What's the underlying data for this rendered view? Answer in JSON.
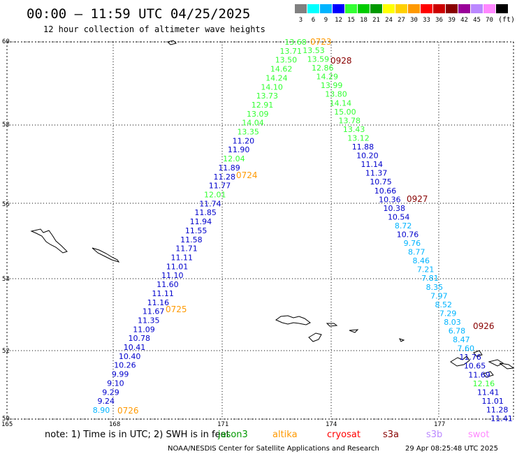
{
  "header": {
    "title": "00:00 — 11:59 UTC 04/25/2025",
    "subtitle": "12 hour collection of altimeter wave heights"
  },
  "legend": {
    "unit": "(ft)",
    "bins": [
      {
        "label": "3",
        "color": "#808080"
      },
      {
        "label": "6",
        "color": "#00ffff"
      },
      {
        "label": "9",
        "color": "#00b4ff"
      },
      {
        "label": "12",
        "color": "#0000ff"
      },
      {
        "label": "15",
        "color": "#33ff33"
      },
      {
        "label": "18",
        "color": "#00cc00"
      },
      {
        "label": "21",
        "color": "#009900"
      },
      {
        "label": "24",
        "color": "#ffff00"
      },
      {
        "label": "27",
        "color": "#ffd000"
      },
      {
        "label": "30",
        "color": "#ff9900"
      },
      {
        "label": "33",
        "color": "#ff0000"
      },
      {
        "label": "36",
        "color": "#cc0000"
      },
      {
        "label": "39",
        "color": "#880000"
      },
      {
        "label": "42",
        "color": "#990099"
      },
      {
        "label": "45",
        "color": "#bb88ff"
      },
      {
        "label": "70",
        "color": "#ff88ff"
      },
      {
        "label": "",
        "color": "#000000"
      }
    ]
  },
  "axes": {
    "lat_labels": [
      "60",
      "58",
      "56",
      "54",
      "52",
      "50"
    ],
    "lon_labels": [
      "165",
      "168",
      "171",
      "174",
      "177"
    ]
  },
  "passes": [
    {
      "label": "0723",
      "color": "#ff9900"
    },
    {
      "label": "0928",
      "color": "#880000"
    },
    {
      "label": "0724",
      "color": "#ff9900"
    },
    {
      "label": "0927",
      "color": "#880000"
    },
    {
      "label": "0725",
      "color": "#ff9900"
    },
    {
      "label": "0926",
      "color": "#880000"
    },
    {
      "label": "0726",
      "color": "#ff9900"
    }
  ],
  "track_a": {
    "values": [
      "13.68",
      "13.71",
      "13.50",
      "14.62",
      "14.24",
      "14.10",
      "13.73",
      "12.91",
      "13.09",
      "14.04",
      "13.35",
      "11.20",
      "11.90",
      "12.04",
      "11.89",
      "11.28",
      "11.77",
      "12.01",
      "11.74",
      "11.85",
      "11.94",
      "11.55",
      "11.58",
      "11.71",
      "11.11",
      "11.01",
      "11.10",
      "11.60",
      "11.11",
      "11.16",
      "11.67",
      "11.35",
      "11.09",
      "10.78",
      "10.41",
      "10.40",
      "10.26",
      "9.99",
      "9.10",
      "9.29",
      "9.24",
      "8.90"
    ],
    "colors": [
      "#33ff33",
      "#33ff33",
      "#33ff33",
      "#33ff33",
      "#33ff33",
      "#33ff33",
      "#33ff33",
      "#33ff33",
      "#33ff33",
      "#33ff33",
      "#33ff33",
      "#0000cc",
      "#0000cc",
      "#33ff33",
      "#0000cc",
      "#0000cc",
      "#0000cc",
      "#33ff33",
      "#0000cc",
      "#0000cc",
      "#0000cc",
      "#0000cc",
      "#0000cc",
      "#0000cc",
      "#0000cc",
      "#0000cc",
      "#0000cc",
      "#0000cc",
      "#0000cc",
      "#0000cc",
      "#0000cc",
      "#0000cc",
      "#0000cc",
      "#0000cc",
      "#0000cc",
      "#0000cc",
      "#0000cc",
      "#0000cc",
      "#0000cc",
      "#0000cc",
      "#0000cc",
      "#00b4ff"
    ]
  },
  "track_b": {
    "values": [
      "13.53",
      "13.59",
      "12.86",
      "14.29",
      "13.99",
      "13.80",
      "14.14",
      "15.00",
      "13.78",
      "13.43",
      "13.12",
      "11.88",
      "10.20",
      "11.14",
      "11.37",
      "10.75",
      "10.66",
      "10.36",
      "10.38",
      "10.54",
      "8.72",
      "10.76",
      "9.76",
      "8.77",
      "8.46",
      "7.21",
      "7.81",
      "8.35",
      "7.97",
      "8.52",
      "7.29",
      "8.03",
      "6.78",
      "8.47",
      "7.60",
      "11.76",
      "10.65",
      "11.69",
      "12.16",
      "11.41",
      "11.01",
      "11.28",
      "11.41"
    ],
    "colors": [
      "#33ff33",
      "#33ff33",
      "#33ff33",
      "#33ff33",
      "#33ff33",
      "#33ff33",
      "#33ff33",
      "#33ff33",
      "#33ff33",
      "#33ff33",
      "#33ff33",
      "#0000cc",
      "#0000cc",
      "#0000cc",
      "#0000cc",
      "#0000cc",
      "#0000cc",
      "#0000cc",
      "#0000cc",
      "#0000cc",
      "#00b4ff",
      "#0000cc",
      "#00b4ff",
      "#00b4ff",
      "#00b4ff",
      "#00b4ff",
      "#00b4ff",
      "#00b4ff",
      "#00b4ff",
      "#00b4ff",
      "#00b4ff",
      "#00b4ff",
      "#00b4ff",
      "#00b4ff",
      "#00b4ff",
      "#0000cc",
      "#0000cc",
      "#0000cc",
      "#33ff33",
      "#0000cc",
      "#0000cc",
      "#0000cc",
      "#0000cc"
    ]
  },
  "footer": {
    "note": "note:  1) Time is in UTC; 2) SWH is in feet",
    "satellites": [
      {
        "name": "jason3",
        "color": "#009900"
      },
      {
        "name": "altika",
        "color": "#ff9900"
      },
      {
        "name": "cryosat",
        "color": "#ff0000"
      },
      {
        "name": "s3a",
        "color": "#880000"
      },
      {
        "name": "s3b",
        "color": "#bb88ff"
      },
      {
        "name": "swot",
        "color": "#ff88ff"
      }
    ],
    "credit": "NOAA/NESDIS Center for Satellite Applications and Research",
    "generated": "29 Apr 08:25:48 UTC 2025"
  }
}
